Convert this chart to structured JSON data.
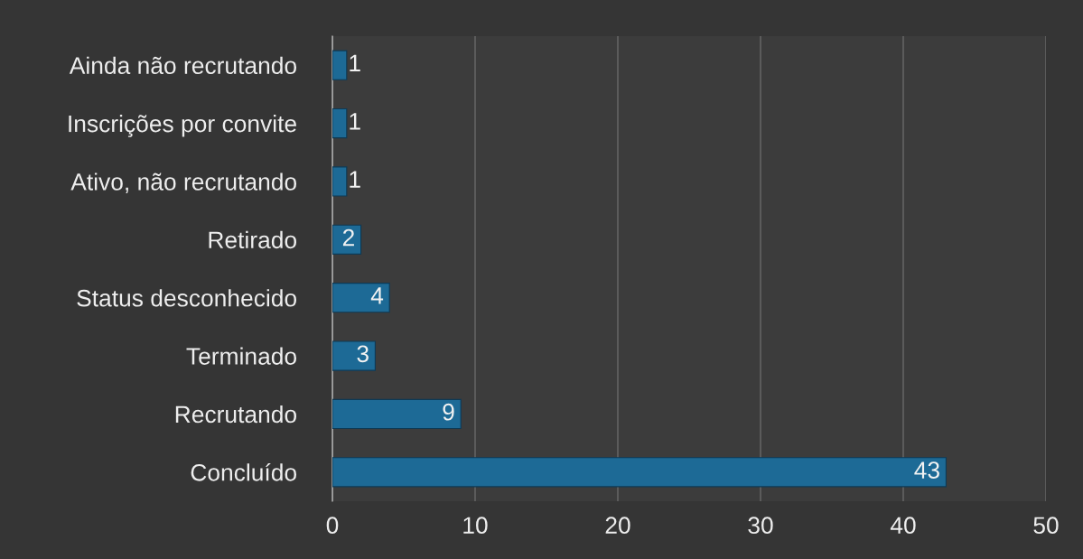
{
  "chart_data": {
    "type": "bar",
    "orientation": "horizontal",
    "categories": [
      "Ainda não recrutando",
      "Inscrições por convite",
      "Ativo, não recrutando",
      "Retirado",
      "Status desconhecido",
      "Terminado",
      "Recrutando",
      "Concluído"
    ],
    "values": [
      1,
      1,
      1,
      2,
      4,
      3,
      9,
      43
    ],
    "color": "#1d6a96",
    "xlim": [
      0,
      50
    ],
    "xticks": [
      0,
      10,
      20,
      30,
      40,
      50
    ],
    "grid": "x",
    "data_labels": true
  }
}
